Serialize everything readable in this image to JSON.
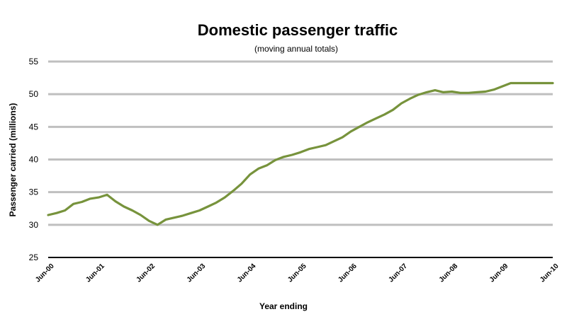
{
  "chart_data": {
    "type": "line",
    "title": "Domestic passenger traffic",
    "subtitle": "(moving annual totals)",
    "xlabel": "Year ending",
    "ylabel": "Passenger carried (millions)",
    "ylim": [
      25,
      55
    ],
    "yticks": [
      25,
      30,
      35,
      40,
      45,
      50,
      55
    ],
    "x_tick_labels": [
      "Jun-00",
      "Jun-01",
      "Jun-02",
      "Jun-03",
      "Jun-04",
      "Jun-05",
      "Jun-06",
      "Jun-07",
      "Jun-08",
      "Jun-09",
      "Jun-10"
    ],
    "grid": "horizontal",
    "legend": "none",
    "series": [
      {
        "color": "#77933c",
        "x": [
          "Jun-00",
          "Aug-00",
          "Oct-00",
          "Dec-00",
          "Feb-01",
          "Apr-01",
          "Jun-01",
          "Aug-01",
          "Oct-01",
          "Dec-01",
          "Feb-02",
          "Apr-02",
          "Jun-02",
          "Aug-02",
          "Oct-02",
          "Dec-02",
          "Feb-03",
          "Apr-03",
          "Jun-03",
          "Aug-03",
          "Oct-03",
          "Dec-03",
          "Feb-04",
          "Apr-04",
          "Jun-04",
          "Aug-04",
          "Oct-04",
          "Dec-04",
          "Feb-05",
          "Apr-05",
          "Jun-05",
          "Aug-05",
          "Oct-05",
          "Dec-05",
          "Feb-06",
          "Apr-06",
          "Jun-06",
          "Aug-06",
          "Oct-06",
          "Dec-06",
          "Feb-07",
          "Apr-07",
          "Jun-07",
          "Aug-07",
          "Oct-07",
          "Dec-07",
          "Feb-08",
          "Apr-08",
          "Jun-08",
          "Aug-08",
          "Oct-08",
          "Dec-08",
          "Feb-09",
          "Apr-09",
          "Jun-09",
          "Aug-09",
          "Oct-09",
          "Dec-09",
          "Feb-10",
          "Apr-10",
          "Jun-10"
        ],
        "values": [
          31.5,
          31.8,
          32.2,
          33.2,
          33.5,
          34.0,
          34.2,
          34.6,
          33.6,
          32.8,
          32.2,
          31.5,
          30.6,
          30.0,
          30.8,
          31.1,
          31.4,
          31.8,
          32.2,
          32.8,
          33.4,
          34.2,
          35.2,
          36.3,
          37.7,
          38.6,
          39.1,
          39.9,
          40.4,
          40.7,
          41.1,
          41.6,
          41.9,
          42.2,
          42.8,
          43.4,
          44.3,
          45.0,
          45.7,
          46.3,
          46.9,
          47.6,
          48.6,
          49.3,
          49.9,
          50.3,
          50.6,
          50.3,
          50.4,
          50.2,
          50.2,
          50.3,
          50.4,
          50.7,
          51.2,
          51.7,
          51.7,
          51.7,
          51.7,
          51.7,
          51.7
        ]
      }
    ]
  }
}
